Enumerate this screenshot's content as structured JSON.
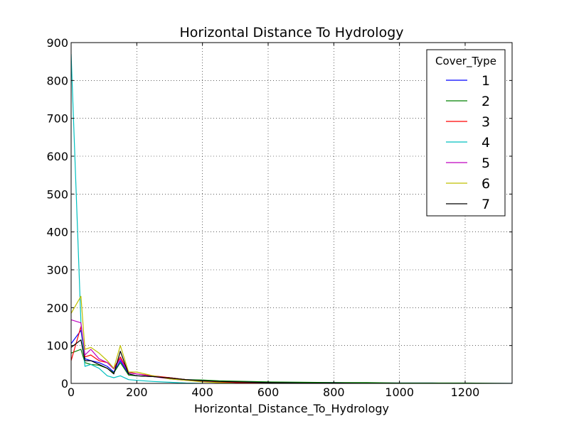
{
  "chart_data": {
    "type": "line",
    "title": "Horizontal Distance To Hydrology",
    "xlabel": "Horizontal_Distance_To_Hydrology",
    "ylabel": "",
    "xlim": [
      0,
      1343
    ],
    "ylim": [
      0,
      900
    ],
    "x_ticks": [
      "0",
      "200",
      "400",
      "600",
      "800",
      "1000",
      "1200"
    ],
    "y_ticks": [
      "0",
      "100",
      "200",
      "300",
      "400",
      "500",
      "600",
      "700",
      "800",
      "900"
    ],
    "grid": true,
    "legend_title": "Cover_Type",
    "legend_position": "top-right",
    "series": [
      {
        "name": "1",
        "color": "#0000ff",
        "x": [
          0,
          30,
          42,
          60,
          85,
          110,
          130,
          150,
          175,
          200,
          250,
          300,
          350,
          400,
          450,
          500,
          550,
          600,
          700,
          800,
          900,
          1000,
          1100,
          1200,
          1343
        ],
        "y": [
          105,
          140,
          65,
          60,
          55,
          45,
          30,
          60,
          25,
          20,
          18,
          15,
          10,
          8,
          6,
          5,
          4,
          3,
          2,
          2,
          1,
          1,
          1,
          0,
          0
        ]
      },
      {
        "name": "2",
        "color": "#008000",
        "x": [
          0,
          30,
          42,
          60,
          85,
          110,
          130,
          150,
          175,
          200,
          250,
          300,
          350,
          400,
          450,
          500,
          550,
          600,
          700,
          800,
          900,
          1000,
          1100,
          1200,
          1343
        ],
        "y": [
          80,
          90,
          55,
          50,
          48,
          40,
          28,
          55,
          22,
          20,
          18,
          15,
          10,
          9,
          7,
          6,
          5,
          4,
          3,
          2,
          2,
          1,
          1,
          1,
          0
        ]
      },
      {
        "name": "3",
        "color": "#ff0000",
        "x": [
          0,
          30,
          42,
          60,
          85,
          110,
          130,
          150,
          175,
          200,
          250,
          300,
          350,
          400,
          450,
          500,
          550,
          600
        ],
        "y": [
          60,
          150,
          70,
          75,
          60,
          55,
          40,
          70,
          30,
          25,
          20,
          15,
          10,
          5,
          3,
          2,
          1,
          0
        ]
      },
      {
        "name": "4",
        "color": "#00bfbf",
        "x": [
          0,
          30,
          42,
          60,
          85,
          110,
          130,
          150,
          175,
          200,
          250,
          300,
          350,
          400
        ],
        "y": [
          870,
          160,
          45,
          50,
          40,
          20,
          15,
          20,
          10,
          8,
          5,
          3,
          1,
          0
        ]
      },
      {
        "name": "5",
        "color": "#bf00bf",
        "x": [
          0,
          30,
          42,
          60,
          85,
          110,
          130,
          150,
          175,
          200,
          250,
          300,
          350,
          400,
          450,
          500
        ],
        "y": [
          168,
          160,
          75,
          90,
          65,
          55,
          38,
          65,
          28,
          25,
          18,
          12,
          8,
          5,
          2,
          0
        ]
      },
      {
        "name": "6",
        "color": "#bfbf00",
        "x": [
          0,
          30,
          42,
          60,
          85,
          110,
          130,
          150,
          175,
          200,
          250,
          300,
          350,
          400,
          450,
          500
        ],
        "y": [
          185,
          230,
          90,
          95,
          80,
          60,
          40,
          100,
          30,
          30,
          20,
          12,
          8,
          4,
          2,
          0
        ]
      },
      {
        "name": "7",
        "color": "#000000",
        "x": [
          0,
          30,
          42,
          60,
          85,
          110,
          130,
          150,
          175,
          200,
          250,
          300,
          350,
          400,
          450,
          500,
          550,
          600,
          700,
          800,
          900,
          1000
        ],
        "y": [
          95,
          115,
          60,
          60,
          50,
          40,
          25,
          85,
          25,
          20,
          18,
          14,
          10,
          7,
          5,
          4,
          3,
          2,
          1,
          1,
          0,
          0
        ]
      }
    ]
  }
}
